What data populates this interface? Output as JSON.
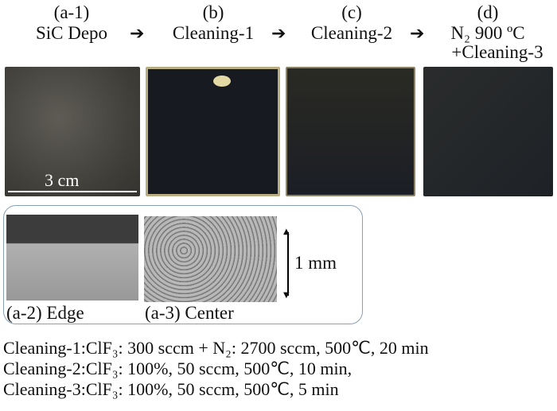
{
  "steps": [
    {
      "id": "(a-1)",
      "label": "SiC Depo"
    },
    {
      "id": "(b)",
      "label": "Cleaning-1"
    },
    {
      "id": "(c)",
      "label": "Cleaning-2"
    },
    {
      "id": "(d)",
      "label": "N₂ 900 ºC",
      "label2": "+Cleaning-3"
    }
  ],
  "scale_photo": "3 cm",
  "sem": {
    "edge": "(a-2) Edge",
    "center": "(a-3) Center",
    "scale": "1 mm"
  },
  "conditions": [
    "Cleaning-1:ClF₃: 300  sccm + N₂: 2700 sccm, 500℃, 20 min",
    "Cleaning-2:ClF₃: 100%,  50 sccm, 500℃, 10 min,",
    "Cleaning-3:ClF₃: 100%,  50 sccm, 500℃, 5 min"
  ]
}
